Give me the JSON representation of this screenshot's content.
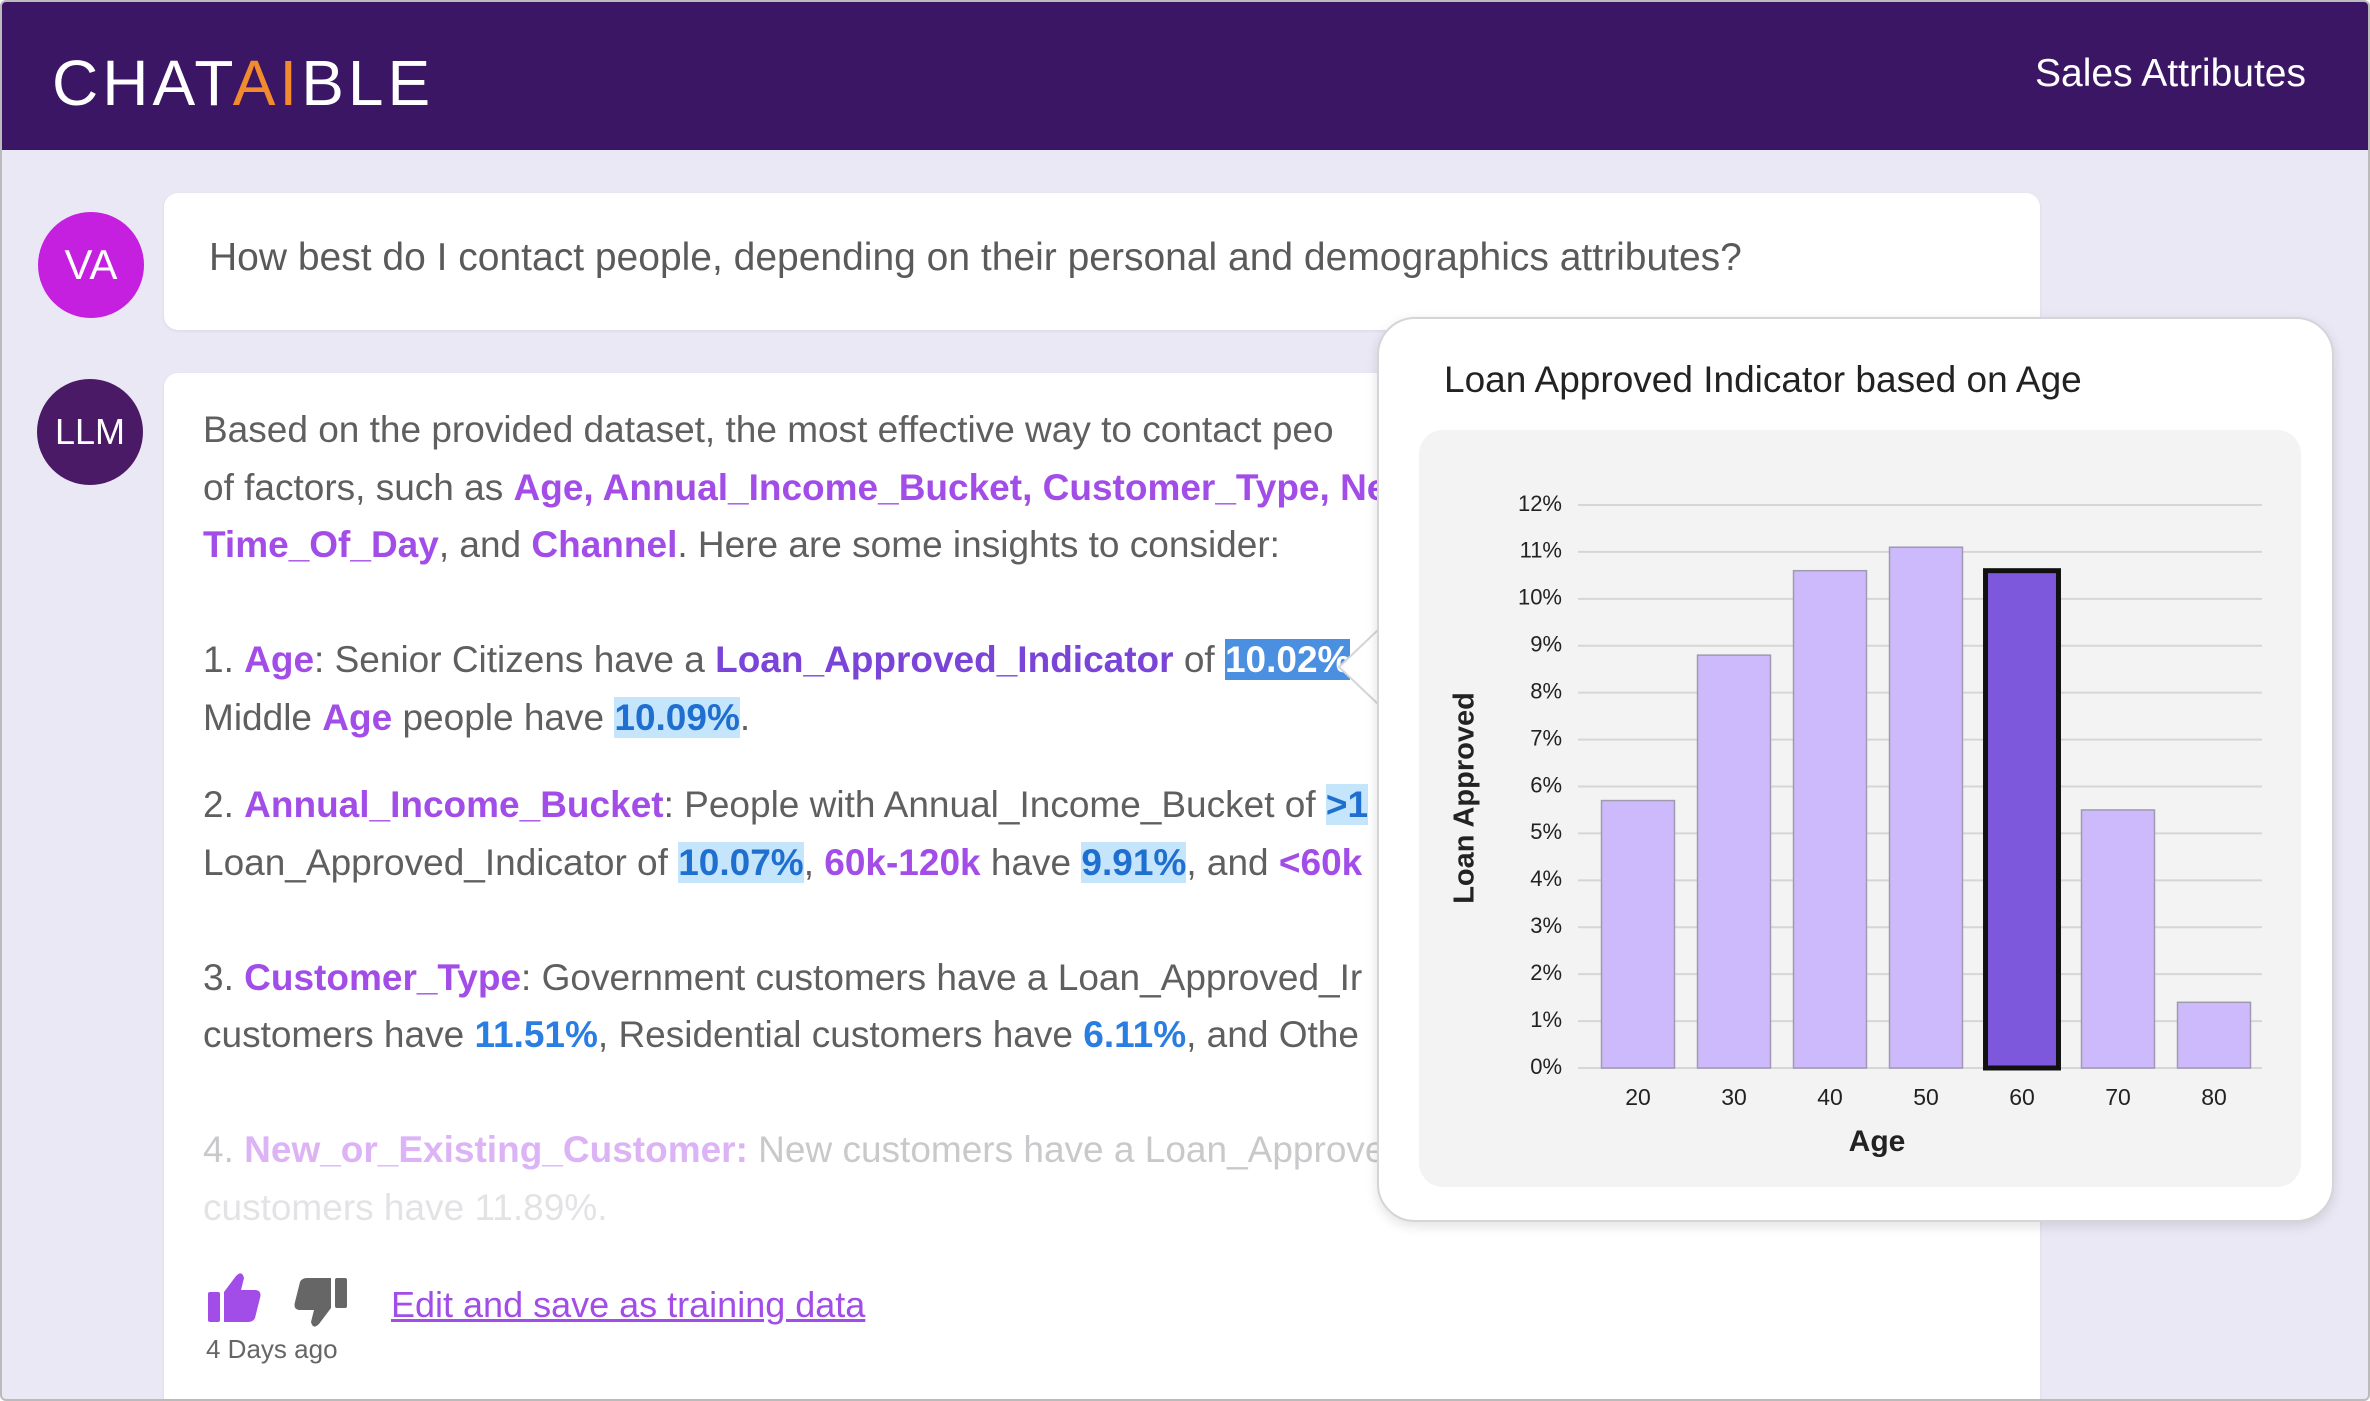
{
  "header": {
    "logo_pre": "CHAT",
    "logo_ai": "AI",
    "logo_post": "BLE",
    "title": "Sales Attributes"
  },
  "question": {
    "avatar": "VA",
    "text": "How best do I contact people, depending on their personal and demographics attributes?"
  },
  "response": {
    "avatar": "LLM",
    "lines": [
      [
        {
          "text": "Based on the provided dataset, the most effective way to contact peo",
          "style": "plain"
        }
      ],
      [
        {
          "text": "of factors, such as ",
          "style": "plain"
        },
        {
          "text": "Age, Annual_Income_Bucket, Customer_Type, Ne",
          "style": "attr"
        }
      ],
      [
        {
          "text": "Time_Of_Day",
          "style": "attr"
        },
        {
          "text": ", and ",
          "style": "plain"
        },
        {
          "text": "Channel",
          "style": "attr"
        },
        {
          "text": ". Here are some insights to consider:",
          "style": "plain"
        }
      ],
      [
        {
          "text": "1. ",
          "style": "plain"
        },
        {
          "text": "Age",
          "style": "attr"
        },
        {
          "text": ": Senior Citizens have a ",
          "style": "plain"
        },
        {
          "text": "Loan_Approved_Indicator",
          "style": "key"
        },
        {
          "text": " of ",
          "style": "plain"
        },
        {
          "text": "10.02%",
          "style": "sel"
        }
      ],
      [
        {
          "text": "Middle ",
          "style": "plain"
        },
        {
          "text": "Age",
          "style": "attr"
        },
        {
          "text": " people have ",
          "style": "plain"
        },
        {
          "text": "10.09%",
          "style": "val"
        },
        {
          "text": ".",
          "style": "plain"
        }
      ],
      [
        {
          "text": "2. ",
          "style": "plain"
        },
        {
          "text": "Annual_Income_Bucket",
          "style": "attr"
        },
        {
          "text": ": People with Annual_Income_Bucket of ",
          "style": "plain"
        },
        {
          "text": ">1",
          "style": "val"
        }
      ],
      [
        {
          "text": "Loan_Approved_Indicator of ",
          "style": "plain"
        },
        {
          "text": "10.07%",
          "style": "val"
        },
        {
          "text": ", ",
          "style": "plain"
        },
        {
          "text": "60k-120k",
          "style": "attr"
        },
        {
          "text": " have ",
          "style": "plain"
        },
        {
          "text": "9.91%",
          "style": "val"
        },
        {
          "text": ", and ",
          "style": "plain"
        },
        {
          "text": "<60k",
          "style": "attr"
        }
      ],
      [
        {
          "text": "3. ",
          "style": "plain"
        },
        {
          "text": "Customer_Type",
          "style": "attr"
        },
        {
          "text": ": Government customers have a Loan_Approved_Ir",
          "style": "plain"
        }
      ],
      [
        {
          "text": "customers have ",
          "style": "plain"
        },
        {
          "text": "11.51%",
          "style": "blue"
        },
        {
          "text": ", Residential customers have ",
          "style": "plain"
        },
        {
          "text": "6.11%",
          "style": "blue"
        },
        {
          "text": ", and Othe",
          "style": "plain"
        }
      ],
      [
        {
          "text": "4. ",
          "style": "fade"
        },
        {
          "text": "New_or_Existing_Customer:",
          "style": "fadeattr"
        },
        {
          "text": " New customers have a Loan_Approve",
          "style": "fade"
        }
      ],
      [
        {
          "text": "customers have 11.89%.",
          "style": "fade2"
        }
      ]
    ],
    "link": "Edit and save as training data",
    "time": "4 Days ago"
  },
  "chart_data": {
    "type": "bar",
    "title": "Loan Approved Indicator based on Age",
    "x_label": "Age",
    "y_label": "Loan Approved",
    "categories": [
      "20",
      "30",
      "40",
      "50",
      "60",
      "70",
      "80"
    ],
    "values": [
      5.7,
      8.8,
      10.6,
      11.1,
      10.6,
      5.5,
      1.4
    ],
    "colors": [
      "#cdbafc",
      "#cdbafc",
      "#cdbafc",
      "#cdbafc",
      "#7e58dc",
      "#cdbafc",
      "#cdbafc"
    ],
    "edge_colors": [
      "#9f9aae",
      "#9f9aae",
      "#9f9aae",
      "#9f9aae",
      "#111111",
      "#9f9aae",
      "#9f9aae"
    ],
    "ylim": [
      0,
      12
    ],
    "yticks": [
      {
        "value": 0,
        "label": "0%"
      },
      {
        "value": 1,
        "label": "1%"
      },
      {
        "value": 2,
        "label": "2%"
      },
      {
        "value": 3,
        "label": "3%"
      },
      {
        "value": 4,
        "label": "4%"
      },
      {
        "value": 5,
        "label": "5%"
      },
      {
        "value": 6,
        "label": "6%"
      },
      {
        "value": 7,
        "label": "7%"
      },
      {
        "value": 8,
        "label": "8%"
      },
      {
        "value": 9,
        "label": "9%"
      },
      {
        "value": 10,
        "label": "10%"
      },
      {
        "value": 11,
        "label": "11%"
      },
      {
        "value": 12,
        "label": "12%"
      }
    ],
    "grid": true
  }
}
